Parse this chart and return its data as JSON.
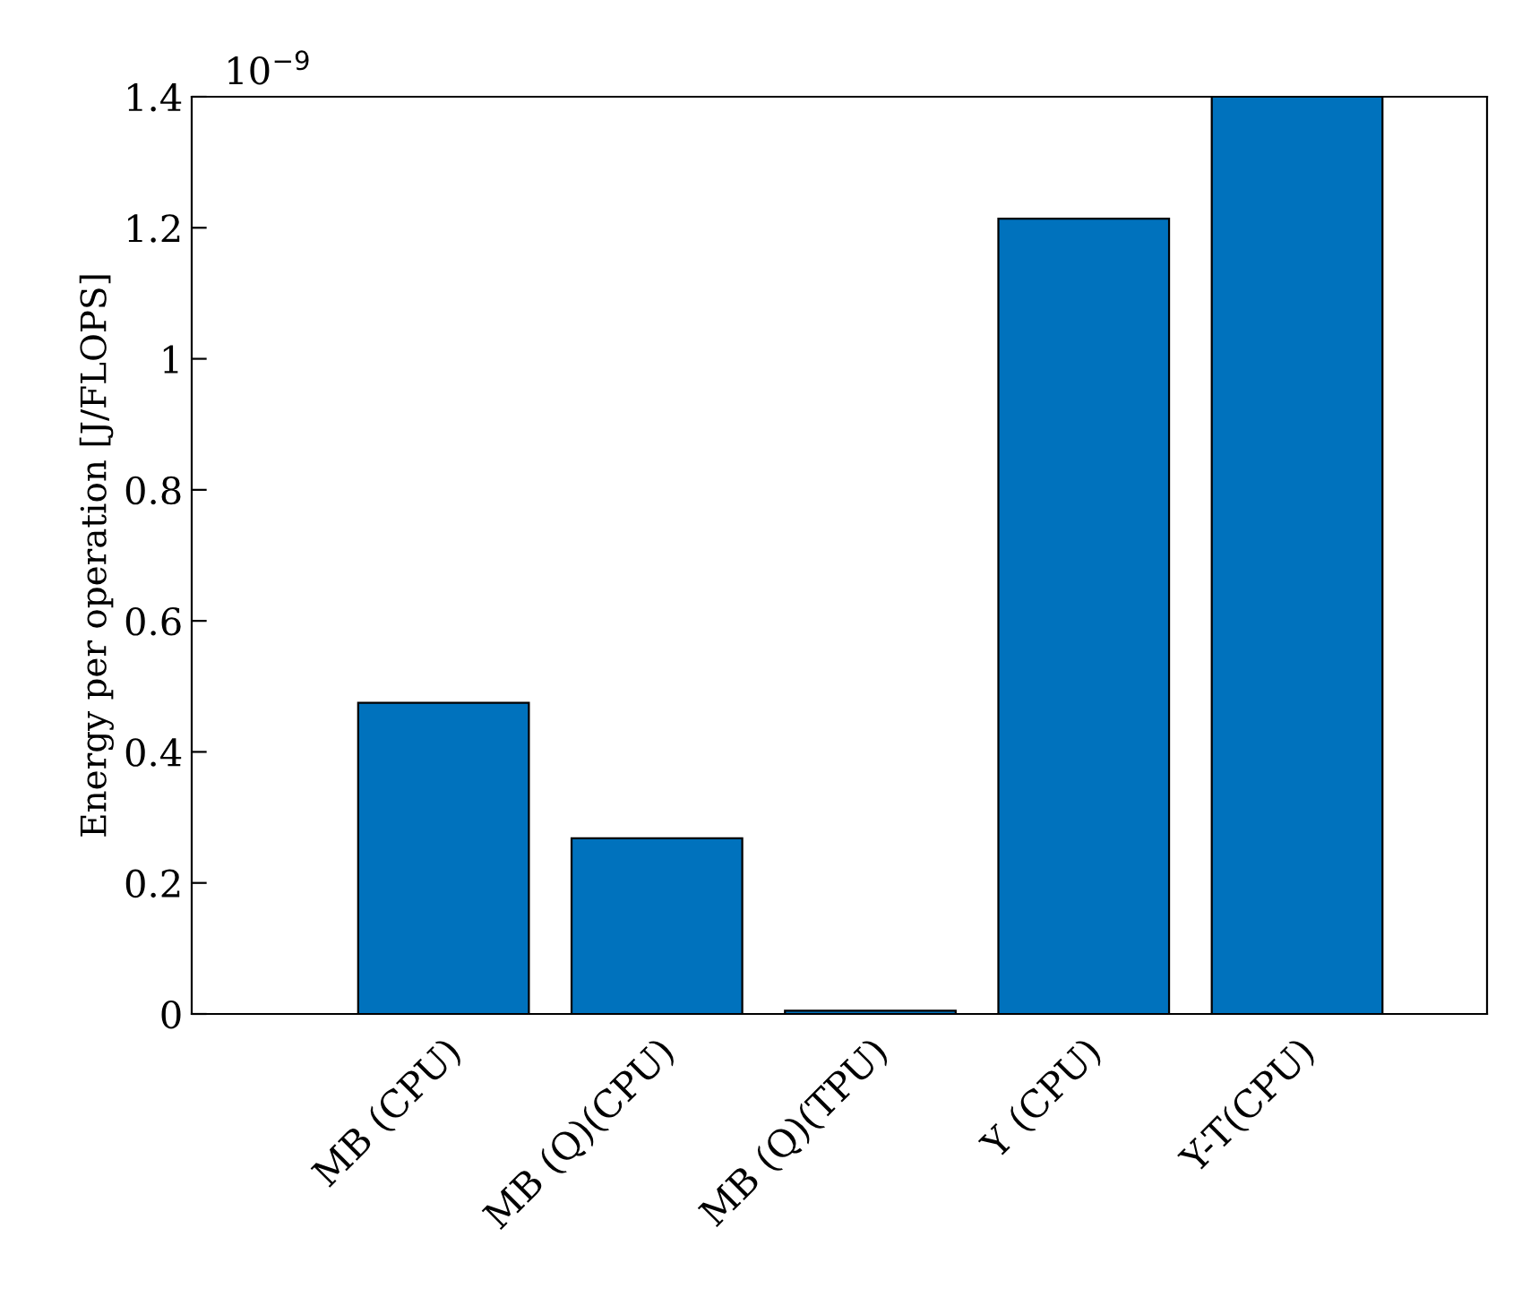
{
  "chart_data": {
    "type": "bar",
    "categories": [
      "MB (CPU)",
      "MB (Q)(CPU)",
      "MB (Q)(TPU)",
      "Y (CPU)",
      "Y-T(CPU)"
    ],
    "values": [
      0.475,
      0.268,
      0.005,
      1.214,
      1.4
    ],
    "color": "#0072bd",
    "ylabel": "Energy per operation [J/FLOPS]",
    "ylim": [
      0,
      1.4
    ],
    "yticks": [
      0,
      0.2,
      0.4,
      0.6,
      0.8,
      1,
      1.2,
      1.4
    ],
    "annotations": [
      "10$^{−9}$"
    ],
    "grid": false,
    "legend": false
  }
}
